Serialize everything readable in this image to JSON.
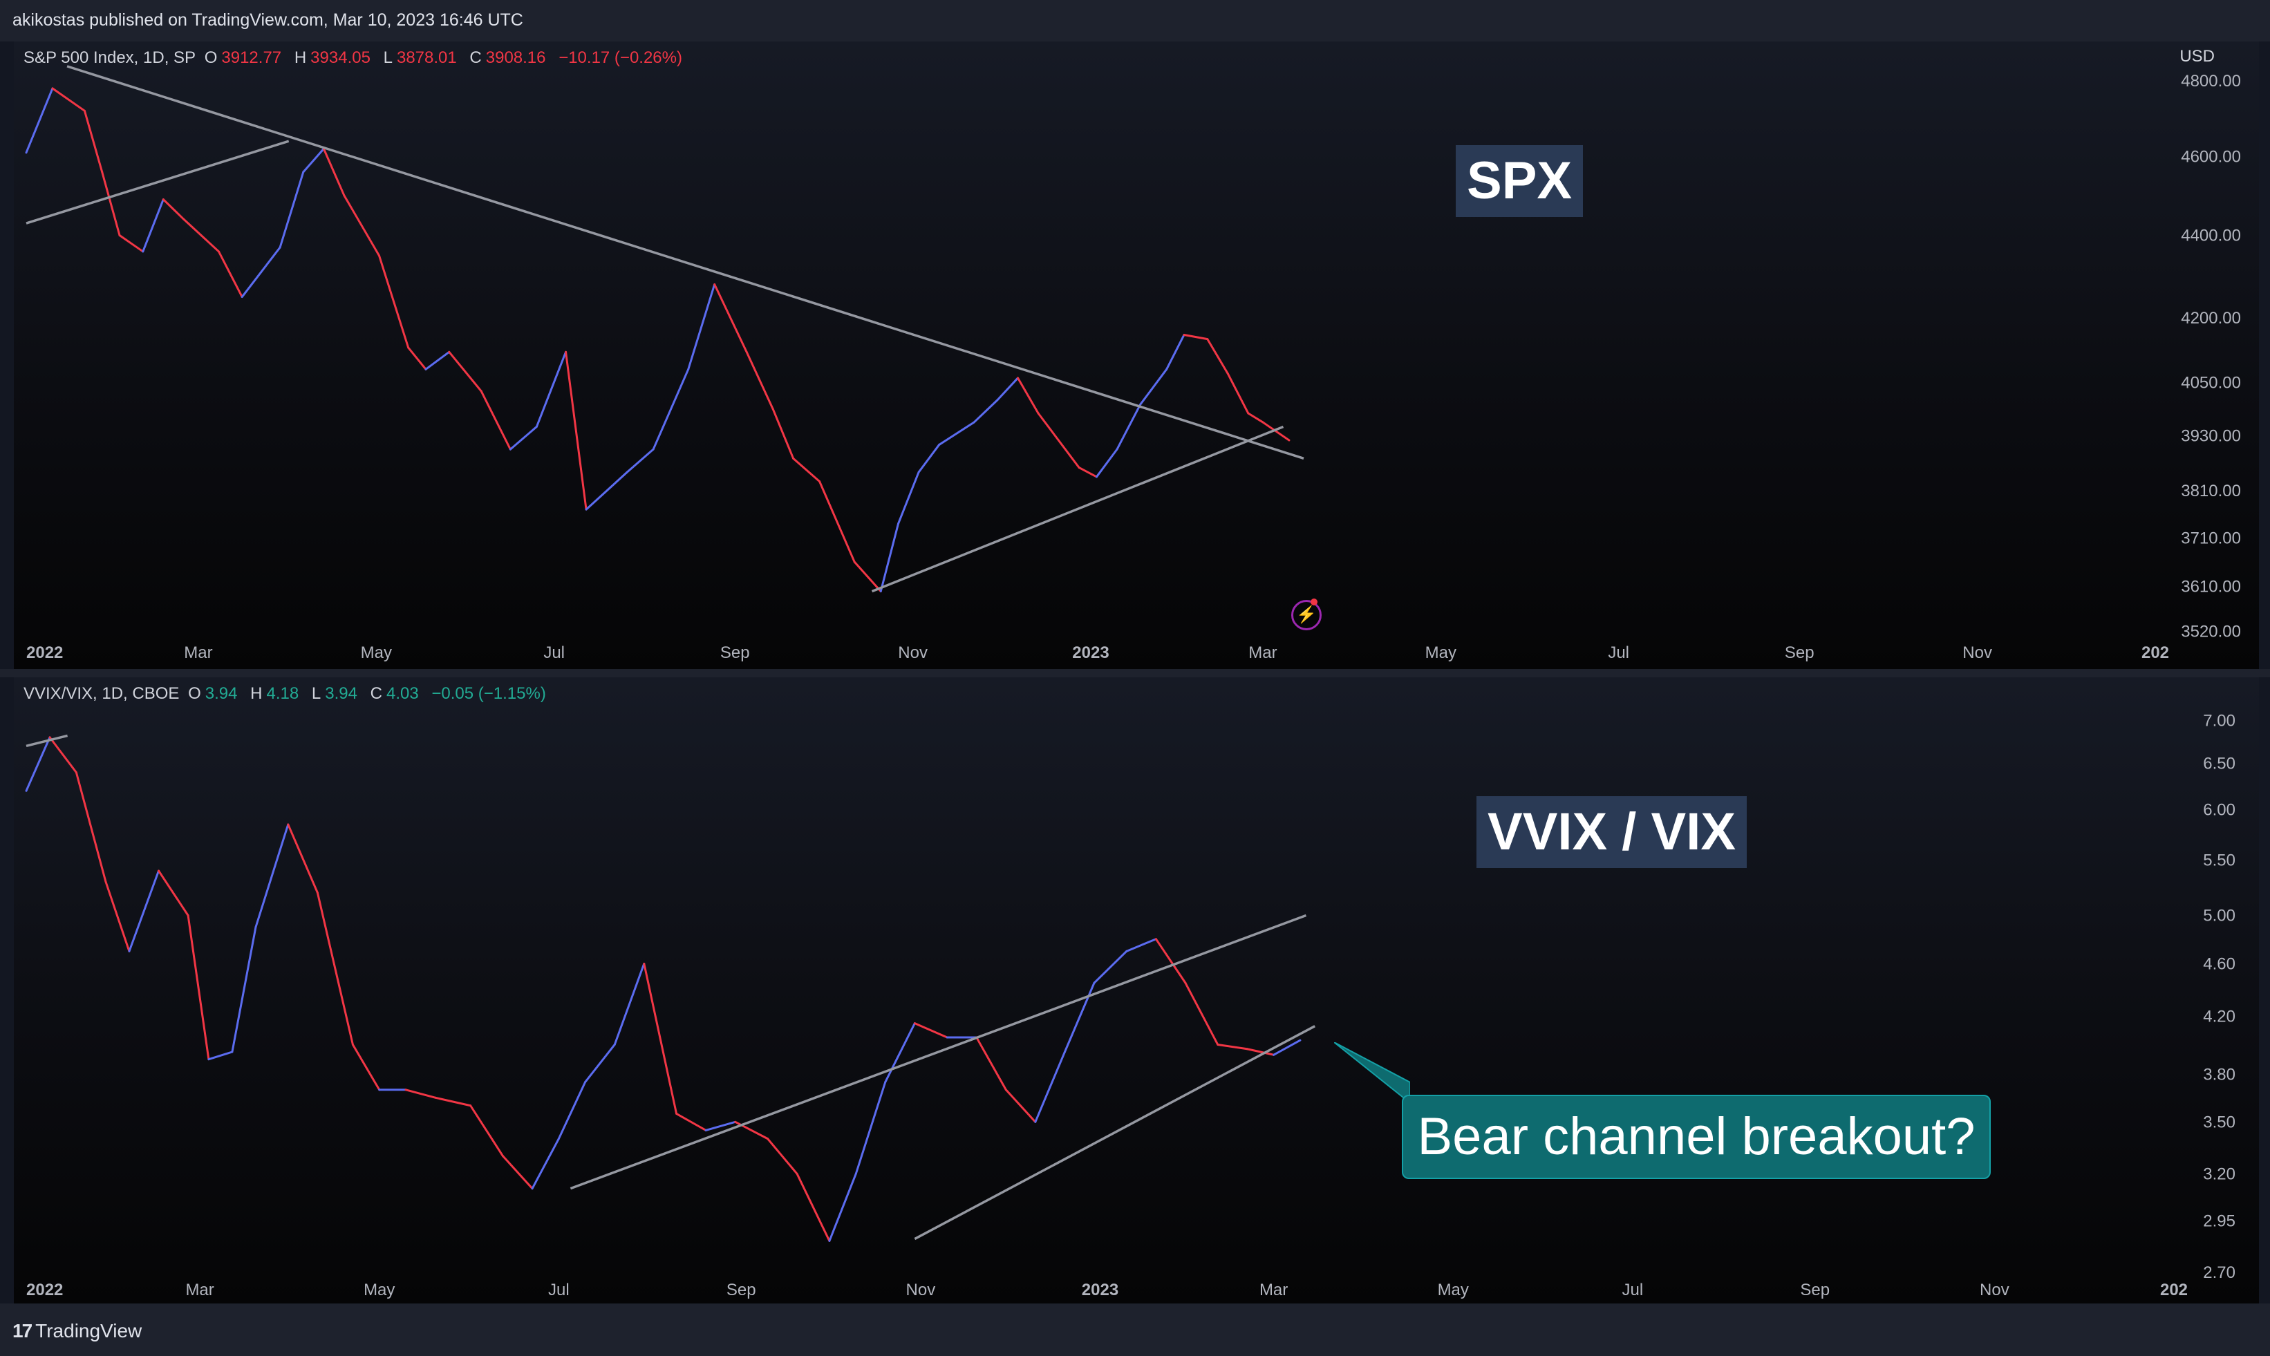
{
  "header": {
    "published": "akikostas published on TradingView.com, Mar 10, 2023 16:46 UTC"
  },
  "footer": {
    "brand": "TradingView",
    "logo_glyph": "17"
  },
  "colors": {
    "up": "#5b6cf0",
    "down": "#f23645",
    "trendline": "#9598a1",
    "callout": "#0e6b6f"
  },
  "chart_data": [
    {
      "type": "line",
      "title": "SPX",
      "legend": {
        "symbol": "S&P 500 Index, 1D, SP",
        "o_label": "O",
        "o": "3912.77",
        "h_label": "H",
        "h": "3934.05",
        "l_label": "L",
        "l": "3878.01",
        "c_label": "C",
        "c": "3908.16",
        "change": "−10.17 (−0.26%)"
      },
      "currency": "USD",
      "y_scale": "log",
      "ylim": [
        3470,
        4870
      ],
      "yticks": [
        "4800.00",
        "4600.00",
        "4400.00",
        "4200.00",
        "4050.00",
        "3930.00",
        "3810.00",
        "3710.00",
        "3610.00",
        "3520.00"
      ],
      "xticks": [
        "2022",
        "Mar",
        "May",
        "Jul",
        "Sep",
        "Nov",
        "2023",
        "Mar",
        "May",
        "Jul",
        "Sep",
        "Nov",
        "202"
      ],
      "x": [
        "2022-01-01",
        "2022-01-10",
        "2022-01-21",
        "2022-01-27",
        "2022-02-02",
        "2022-02-10",
        "2022-02-17",
        "2022-02-24",
        "2022-03-08",
        "2022-03-16",
        "2022-03-29",
        "2022-04-06",
        "2022-04-13",
        "2022-04-20",
        "2022-05-02",
        "2022-05-12",
        "2022-05-18",
        "2022-05-26",
        "2022-06-06",
        "2022-06-16",
        "2022-06-25",
        "2022-07-05",
        "2022-07-12",
        "2022-07-26",
        "2022-08-04",
        "2022-08-16",
        "2022-08-25",
        "2022-09-05",
        "2022-09-14",
        "2022-09-21",
        "2022-09-30",
        "2022-10-12",
        "2022-10-21",
        "2022-10-27",
        "2022-11-03",
        "2022-11-10",
        "2022-11-22",
        "2022-11-30",
        "2022-12-07",
        "2022-12-14",
        "2022-12-28",
        "2023-01-03",
        "2023-01-10",
        "2023-01-18",
        "2023-01-27",
        "2023-02-02",
        "2023-02-10",
        "2023-02-17",
        "2023-02-24",
        "2023-03-01",
        "2023-03-10"
      ],
      "series": [
        {
          "values": [
            4610,
            4780,
            4720,
            4560,
            4400,
            4360,
            4490,
            4440,
            4360,
            4250,
            4370,
            4560,
            4620,
            4500,
            4350,
            4130,
            4080,
            4120,
            4030,
            3900,
            3950,
            4120,
            3770,
            3850,
            3900,
            4080,
            4280,
            4120,
            3990,
            3880,
            3830,
            3660,
            3600,
            3740,
            3850,
            3910,
            3960,
            4010,
            4060,
            3980,
            3860,
            3840,
            3900,
            4000,
            4080,
            4160,
            4150,
            4070,
            3980,
            3960,
            3920
          ]
        }
      ],
      "trendlines": [
        {
          "from": [
            "2022-01-01",
            4430
          ],
          "to": [
            "2022-04-01",
            4640
          ]
        },
        {
          "from": [
            "2022-01-15",
            4840
          ],
          "to": [
            "2023-03-15",
            3880
          ]
        },
        {
          "from": [
            "2022-10-18",
            3600
          ],
          "to": [
            "2023-03-08",
            3950
          ]
        }
      ]
    },
    {
      "type": "line",
      "title": "VVIX / VIX",
      "legend": {
        "symbol": "VVIX/VIX, 1D, CBOE",
        "o_label": "O",
        "o": "3.94",
        "h_label": "H",
        "h": "4.18",
        "l_label": "L",
        "l": "3.94",
        "c_label": "C",
        "c": "4.03",
        "change": "−0.05 (−1.15%)"
      },
      "y_scale": "log",
      "ylim": [
        2.62,
        7.4
      ],
      "yticks": [
        "7.00",
        "6.50",
        "6.00",
        "5.50",
        "5.00",
        "4.60",
        "4.20",
        "3.80",
        "3.50",
        "3.20",
        "2.95",
        "2.70"
      ],
      "xticks": [
        "2022",
        "Mar",
        "May",
        "Jul",
        "Sep",
        "Nov",
        "2023",
        "Mar",
        "May",
        "Jul",
        "Sep",
        "Nov",
        "202"
      ],
      "x": [
        "2022-01-01",
        "2022-01-09",
        "2022-01-18",
        "2022-01-28",
        "2022-02-05",
        "2022-02-15",
        "2022-02-25",
        "2022-03-04",
        "2022-03-12",
        "2022-03-20",
        "2022-03-31",
        "2022-04-10",
        "2022-04-22",
        "2022-05-01",
        "2022-05-10",
        "2022-05-20",
        "2022-06-01",
        "2022-06-12",
        "2022-06-22",
        "2022-07-01",
        "2022-07-10",
        "2022-07-20",
        "2022-07-30",
        "2022-08-10",
        "2022-08-20",
        "2022-08-30",
        "2022-09-10",
        "2022-09-20",
        "2022-10-01",
        "2022-10-10",
        "2022-10-20",
        "2022-10-30",
        "2022-11-10",
        "2022-11-20",
        "2022-11-30",
        "2022-12-10",
        "2022-12-20",
        "2022-12-30",
        "2023-01-10",
        "2023-01-20",
        "2023-01-30",
        "2023-02-10",
        "2023-02-20",
        "2023-03-01",
        "2023-03-10"
      ],
      "series": [
        {
          "values": [
            6.2,
            6.8,
            6.4,
            5.3,
            4.7,
            5.4,
            5.0,
            3.9,
            3.95,
            4.9,
            5.85,
            5.2,
            4.0,
            3.7,
            3.7,
            3.65,
            3.6,
            3.3,
            3.12,
            3.4,
            3.75,
            4.0,
            4.6,
            3.55,
            3.45,
            3.5,
            3.4,
            3.2,
            2.85,
            3.2,
            3.75,
            4.15,
            4.05,
            4.05,
            3.7,
            3.5,
            3.95,
            4.45,
            4.7,
            4.8,
            4.45,
            4.0,
            3.97,
            3.93,
            4.03
          ]
        }
      ],
      "trendlines": [
        {
          "from": [
            "2022-01-01",
            6.7
          ],
          "to": [
            "2022-01-15",
            6.82
          ]
        },
        {
          "from": [
            "2022-07-05",
            3.12
          ],
          "to": [
            "2023-03-12",
            5.0
          ]
        },
        {
          "from": [
            "2022-10-30",
            2.86
          ],
          "to": [
            "2023-03-15",
            4.13
          ]
        }
      ],
      "annotation": "Bear channel breakout?"
    }
  ]
}
